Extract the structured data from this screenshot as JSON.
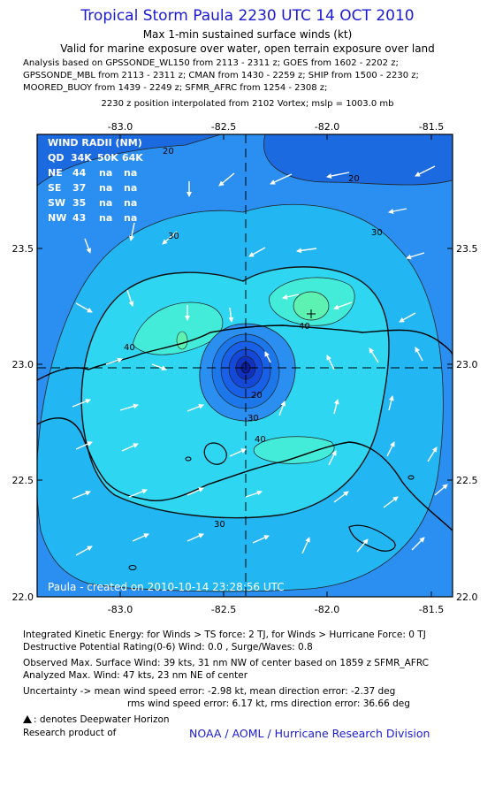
{
  "header": {
    "title": "Tropical Storm Paula 2230 UTC 14 OCT 2010",
    "subtitle1": "Max 1-min sustained surface winds (kt)",
    "subtitle2": "Valid for marine exposure over water, open terrain exposure over land",
    "analysis_lines": [
      "Analysis based on GPSSONDE_WL150 from 2113 - 2311 z; GOES from 1602 - 2202 z;",
      "GPSSONDE_MBL from 2113 - 2311 z; CMAN from 1430 - 2259 z; SHIP from 1500 - 2230 z;",
      "MOORED_BUOY from 1439 - 2249 z; SFMR_AFRC from 1254 - 2308 z;"
    ],
    "position_line": "2230 z position interpolated from 2102 Vortex; mslp = 1003.0 mb"
  },
  "map": {
    "wind_radii_title": "WIND RADII (NM)",
    "wind_radii_header": [
      "QD",
      "34K",
      "50K",
      "64K"
    ],
    "wind_radii_rows": [
      [
        "NE",
        "44",
        "na",
        "na"
      ],
      [
        "SE",
        "37",
        "na",
        "na"
      ],
      [
        "SW",
        "35",
        "na",
        "na"
      ],
      [
        "NW",
        "43",
        "na",
        "na"
      ]
    ],
    "credit": "Paula - created on 2010-10-14 23:28:56 UTC"
  },
  "chart_data": {
    "type": "contour",
    "xlabel": "",
    "ylabel": "",
    "xlim": [
      -83.4,
      -81.4
    ],
    "ylim": [
      22.0,
      23.95
    ],
    "x_ticks": [
      -83.0,
      -82.5,
      -82.0,
      -81.5
    ],
    "x_tick_labels": [
      "-83.0",
      "-82.5",
      "-82.0",
      "-81.5"
    ],
    "y_ticks": [
      22.0,
      22.5,
      23.0,
      23.5
    ],
    "y_tick_labels": [
      "22.0",
      "22.5",
      "23.0",
      "23.5"
    ],
    "center": {
      "lon": -82.4,
      "lat": 22.98
    },
    "contour_labels": [
      {
        "text": "20",
        "lon": -82.8,
        "lat": 23.85
      },
      {
        "text": "20",
        "lon": -81.9,
        "lat": 23.78
      },
      {
        "text": "30",
        "lon": -82.86,
        "lat": 23.54
      },
      {
        "text": "30",
        "lon": -81.77,
        "lat": 23.55
      },
      {
        "text": "40",
        "lon": -83.02,
        "lat": 23.06
      },
      {
        "text": "40",
        "lon": -82.08,
        "lat": 23.17
      },
      {
        "text": "20",
        "lon": -82.4,
        "lat": 22.87
      },
      {
        "text": "30",
        "lon": -82.4,
        "lat": 22.78
      },
      {
        "text": "40",
        "lon": -82.33,
        "lat": 22.67
      },
      {
        "text": "30",
        "lon": -82.5,
        "lat": 22.32
      }
    ],
    "max_wind_marker": {
      "lon": -82.07,
      "lat": 23.19
    },
    "colors": {
      "outer": "#1c6ae0",
      "l20": "#2a8ff0",
      "l30": "#22b6f2",
      "l40": "#2ed6f2",
      "l45": "#43ecd8",
      "max": "#5ef2b2",
      "eye_outer": "#1860e8",
      "eye_mid": "#1448d8",
      "eye_in": "#1030c0",
      "eye_core": "#0a1c9a"
    }
  },
  "footer": {
    "ike_line": "Integrated Kinetic Energy:  for Winds > TS force: 2 TJ,  for Winds > Hurricane Force: 0 TJ",
    "dpr_line": "Destructive Potential Rating(0-6)   Wind: 0.0 , Surge/Waves: 0.8",
    "obs_line": "Observed Max. Surface Wind: 39 kts, 31 nm NW of center based on 1859 z SFMR_AFRC",
    "analyzed_line": "Analyzed Max. Wind: 47 kts, 23 nm NE of center",
    "unc_line1": "Uncertainty -> mean wind speed error:  -2.98 kt,   mean direction error:  -2.37 deg",
    "unc_line2": "rms wind speed error: 6.17 kt,   rms direction error: 36.66 deg",
    "deepwater_line": ": denotes Deepwater Horizon",
    "research_label": "Research product of",
    "org": "NOAA / AOML / Hurricane Research Division"
  }
}
